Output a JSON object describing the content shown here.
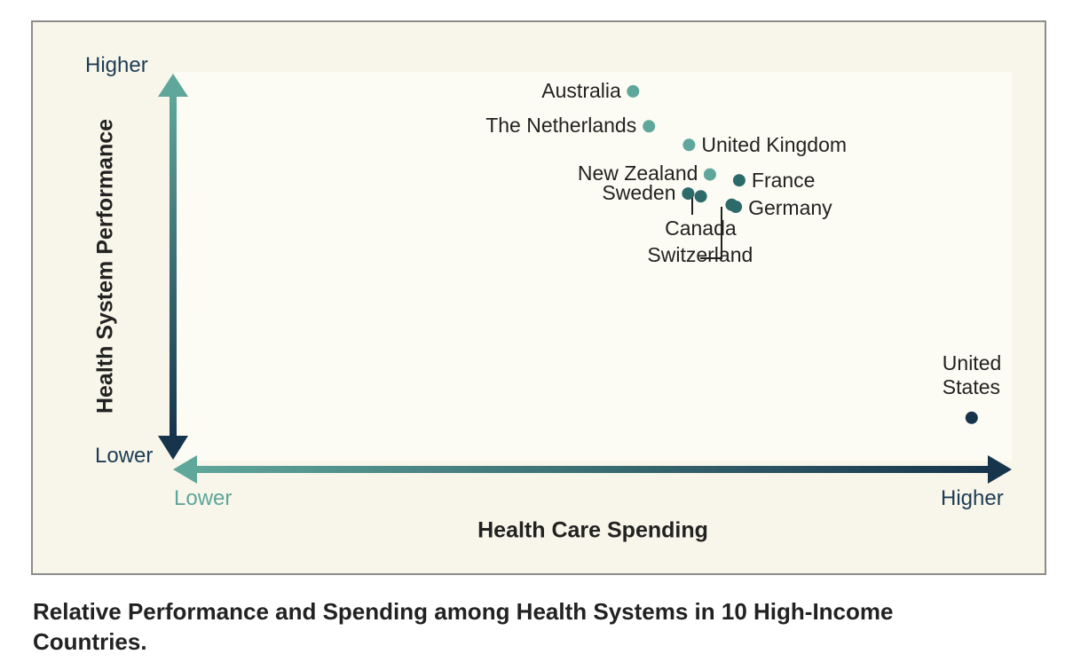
{
  "chart_data": {
    "type": "scatter",
    "title": "Relative Performance and Spending among Health Systems in 10 High-Income Countries.",
    "xlabel": "Health Care Spending",
    "ylabel": "Health System Performance",
    "x_axis_ends": {
      "low": "Lower",
      "high": "Higher"
    },
    "y_axis_ends": {
      "low": "Lower",
      "high": "Higher"
    },
    "xlim": [
      0,
      100
    ],
    "ylim": [
      0,
      100
    ],
    "colors": {
      "light": "#5fa69b",
      "mid": "#2d6a6a",
      "dark": "#16344c"
    },
    "points": [
      {
        "label": "Australia",
        "x": 54.7,
        "y": 95.0,
        "tone": "light"
      },
      {
        "label": "The Netherlands",
        "x": 56.6,
        "y": 86.0,
        "tone": "light"
      },
      {
        "label": "United Kingdom",
        "x": 61.4,
        "y": 81.2,
        "tone": "light"
      },
      {
        "label": "New Zealand",
        "x": 63.9,
        "y": 73.6,
        "tone": "light"
      },
      {
        "label": "France",
        "x": 67.4,
        "y": 72.1,
        "tone": "mid"
      },
      {
        "label": "Sweden",
        "x": 61.3,
        "y": 68.7,
        "tone": "mid"
      },
      {
        "label": "Canada",
        "x": 62.8,
        "y": 68.0,
        "tone": "mid"
      },
      {
        "label": "Germany",
        "x": 67.0,
        "y": 65.3,
        "tone": "mid"
      },
      {
        "label": "Switzerland",
        "x": 66.5,
        "y": 65.8,
        "tone": "mid"
      },
      {
        "label": "United\nStates",
        "x": 95.2,
        "y": 11.0,
        "tone": "dark"
      }
    ]
  }
}
